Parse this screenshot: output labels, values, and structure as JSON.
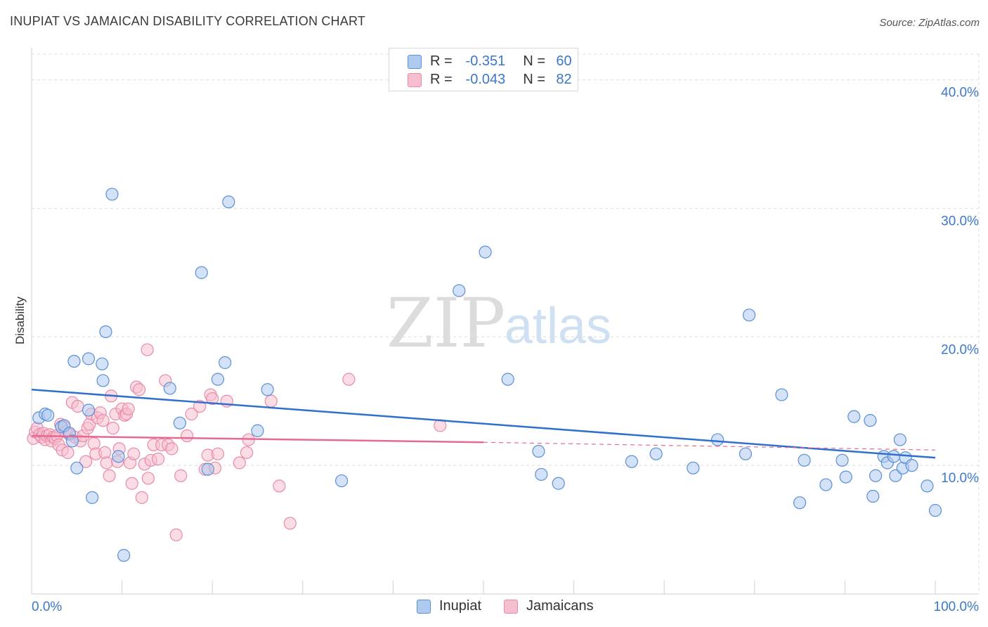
{
  "title": "INUPIAT VS JAMAICAN DISABILITY CORRELATION CHART",
  "source": "Source: ZipAtlas.com",
  "watermark": {
    "zip": "ZIP",
    "atlas": "atlas"
  },
  "legend_top": [
    {
      "r_label": "R =",
      "r_value": "-0.351",
      "n_label": "N =",
      "n_value": "60"
    },
    {
      "r_label": "R =",
      "r_value": "-0.043",
      "n_label": "N =",
      "n_value": "82"
    }
  ],
  "legend_bottom": [
    {
      "label": "Inupiat"
    },
    {
      "label": "Jamaicans"
    }
  ],
  "colors": {
    "inupiat_fill": "#aecbef",
    "inupiat_stroke": "#5b8fd6",
    "inupiat_line": "#2f6fce",
    "jamaican_fill": "#f6bfd0",
    "jamaican_stroke": "#e98aa8",
    "jamaican_line": "#e56a93",
    "tick_text": "#3b78c9",
    "grid": "#dddddd"
  },
  "chart_data": {
    "type": "scatter",
    "title": "INUPIAT VS JAMAICAN DISABILITY CORRELATION CHART",
    "xlabel": "",
    "ylabel": "Disability",
    "xlim": [
      0,
      100
    ],
    "ylim": [
      0,
      42
    ],
    "x_tick_labels": [
      "0.0%",
      "100.0%"
    ],
    "y_ticks": [
      10,
      20,
      30,
      40
    ],
    "y_tick_labels": [
      "10.0%",
      "20.0%",
      "30.0%",
      "40.0%"
    ],
    "grid": true,
    "legend_position": "top-center",
    "series": [
      {
        "name": "Inupiat",
        "r": -0.351,
        "n": 60,
        "trend": {
          "x": [
            0,
            100
          ],
          "y": [
            15.9,
            10.6
          ]
        },
        "points": [
          [
            0.8,
            13.7
          ],
          [
            1.5,
            14.0
          ],
          [
            1.8,
            13.9
          ],
          [
            3.3,
            13.0
          ],
          [
            3.6,
            13.1
          ],
          [
            4.2,
            12.5
          ],
          [
            4.5,
            11.9
          ],
          [
            5.0,
            9.8
          ],
          [
            4.7,
            18.1
          ],
          [
            6.3,
            18.3
          ],
          [
            6.3,
            14.3
          ],
          [
            6.7,
            7.5
          ],
          [
            7.8,
            17.9
          ],
          [
            7.9,
            16.6
          ],
          [
            8.2,
            20.4
          ],
          [
            8.9,
            31.1
          ],
          [
            9.6,
            10.7
          ],
          [
            10.2,
            3.0
          ],
          [
            15.3,
            16.0
          ],
          [
            16.4,
            13.3
          ],
          [
            18.8,
            25.0
          ],
          [
            19.5,
            9.7
          ],
          [
            20.6,
            16.7
          ],
          [
            21.4,
            18.0
          ],
          [
            21.8,
            30.5
          ],
          [
            25.0,
            12.7
          ],
          [
            26.1,
            15.9
          ],
          [
            34.3,
            8.8
          ],
          [
            47.3,
            23.6
          ],
          [
            50.2,
            26.6
          ],
          [
            52.7,
            16.7
          ],
          [
            56.1,
            11.1
          ],
          [
            56.4,
            9.3
          ],
          [
            58.3,
            8.6
          ],
          [
            66.4,
            10.3
          ],
          [
            69.1,
            10.9
          ],
          [
            73.2,
            9.8
          ],
          [
            75.9,
            12.0
          ],
          [
            79.0,
            10.9
          ],
          [
            79.4,
            21.7
          ],
          [
            83.0,
            15.5
          ],
          [
            85.0,
            7.1
          ],
          [
            85.5,
            10.4
          ],
          [
            87.9,
            8.5
          ],
          [
            89.7,
            10.4
          ],
          [
            90.1,
            9.1
          ],
          [
            91.0,
            13.8
          ],
          [
            92.8,
            13.5
          ],
          [
            93.1,
            7.6
          ],
          [
            93.4,
            9.2
          ],
          [
            94.3,
            10.7
          ],
          [
            94.7,
            10.2
          ],
          [
            95.6,
            9.2
          ],
          [
            96.1,
            12.0
          ],
          [
            96.4,
            9.8
          ],
          [
            96.7,
            10.6
          ],
          [
            97.4,
            10.0
          ],
          [
            99.1,
            8.4
          ],
          [
            100.0,
            6.5
          ],
          [
            95.4,
            10.7
          ]
        ]
      },
      {
        "name": "Jamaicans",
        "r": -0.043,
        "n": 82,
        "trend": {
          "x": [
            0,
            50
          ],
          "y": [
            12.3,
            11.8
          ]
        },
        "trend_dashed": {
          "x": [
            50,
            100
          ],
          "y": [
            11.8,
            11.2
          ]
        },
        "points": [
          [
            0.2,
            12.1
          ],
          [
            0.4,
            12.6
          ],
          [
            0.6,
            12.9
          ],
          [
            0.9,
            12.4
          ],
          [
            1.1,
            12.2
          ],
          [
            1.3,
            12.5
          ],
          [
            1.5,
            12.0
          ],
          [
            1.7,
            12.3
          ],
          [
            2.0,
            12.4
          ],
          [
            2.2,
            11.9
          ],
          [
            2.4,
            12.2
          ],
          [
            2.6,
            12.1
          ],
          [
            2.8,
            12.3
          ],
          [
            3.0,
            11.6
          ],
          [
            3.2,
            13.2
          ],
          [
            3.4,
            11.2
          ],
          [
            3.6,
            13.0
          ],
          [
            3.8,
            12.6
          ],
          [
            4.0,
            11.0
          ],
          [
            4.2,
            12.4
          ],
          [
            4.5,
            14.9
          ],
          [
            4.8,
            12.2
          ],
          [
            5.1,
            14.6
          ],
          [
            5.4,
            11.9
          ],
          [
            5.7,
            12.3
          ],
          [
            6.0,
            10.3
          ],
          [
            6.2,
            12.9
          ],
          [
            6.4,
            13.2
          ],
          [
            6.6,
            14.0
          ],
          [
            6.9,
            11.7
          ],
          [
            7.1,
            10.9
          ],
          [
            7.3,
            13.7
          ],
          [
            7.6,
            14.1
          ],
          [
            7.9,
            13.5
          ],
          [
            8.1,
            11.0
          ],
          [
            8.3,
            10.2
          ],
          [
            8.6,
            9.2
          ],
          [
            8.8,
            15.4
          ],
          [
            9.0,
            12.9
          ],
          [
            9.3,
            14.0
          ],
          [
            9.5,
            10.3
          ],
          [
            9.7,
            11.3
          ],
          [
            10.0,
            14.4
          ],
          [
            10.3,
            13.9
          ],
          [
            10.5,
            14.0
          ],
          [
            10.7,
            14.4
          ],
          [
            10.9,
            10.2
          ],
          [
            11.1,
            8.6
          ],
          [
            11.3,
            10.9
          ],
          [
            11.6,
            16.1
          ],
          [
            11.9,
            15.9
          ],
          [
            12.2,
            7.5
          ],
          [
            12.5,
            10.1
          ],
          [
            12.8,
            19.0
          ],
          [
            12.9,
            9.0
          ],
          [
            13.2,
            10.4
          ],
          [
            13.5,
            11.6
          ],
          [
            14.0,
            10.5
          ],
          [
            14.4,
            11.6
          ],
          [
            14.8,
            16.6
          ],
          [
            15.1,
            11.6
          ],
          [
            15.5,
            11.3
          ],
          [
            16.0,
            4.6
          ],
          [
            16.5,
            9.2
          ],
          [
            17.2,
            12.3
          ],
          [
            17.7,
            14.0
          ],
          [
            18.6,
            14.6
          ],
          [
            19.2,
            9.7
          ],
          [
            19.5,
            10.8
          ],
          [
            19.8,
            15.5
          ],
          [
            20.0,
            15.2
          ],
          [
            20.3,
            9.8
          ],
          [
            20.6,
            10.9
          ],
          [
            21.6,
            15.0
          ],
          [
            23.0,
            10.2
          ],
          [
            23.8,
            11.0
          ],
          [
            24.0,
            12.0
          ],
          [
            26.5,
            15.0
          ],
          [
            27.4,
            8.4
          ],
          [
            28.6,
            5.5
          ],
          [
            35.1,
            16.7
          ],
          [
            45.2,
            13.1
          ]
        ]
      }
    ]
  }
}
